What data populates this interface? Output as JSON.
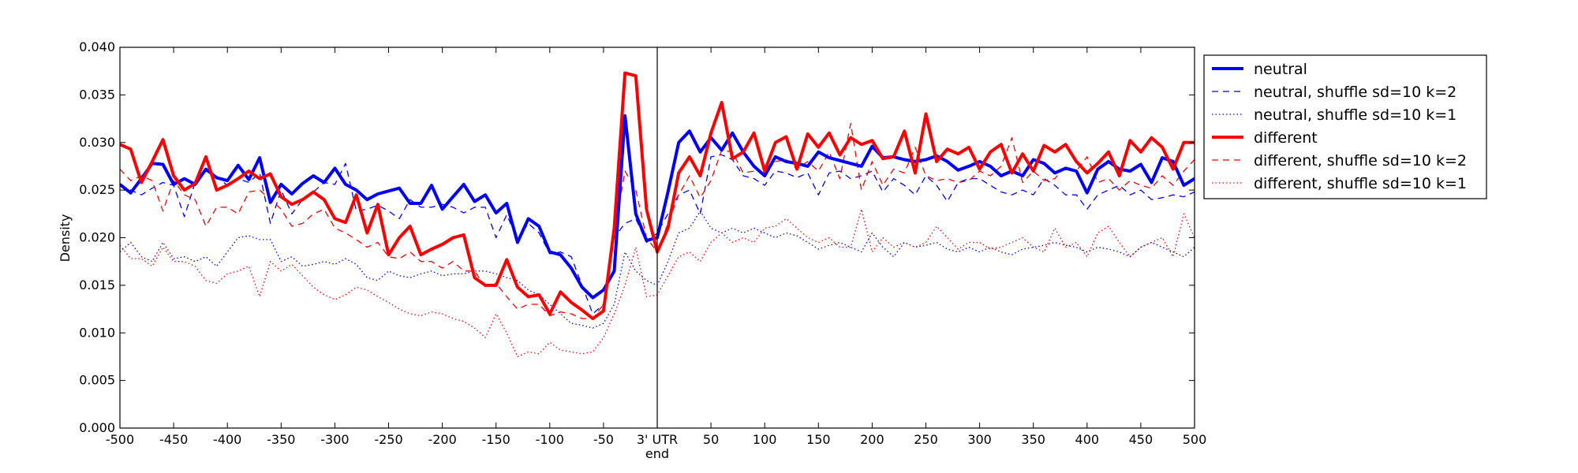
{
  "chart_data": {
    "type": "line",
    "title": "",
    "xlabel": "",
    "ylabel": "Density",
    "xlim": [
      -500,
      500
    ],
    "ylim": [
      0,
      0.04
    ],
    "xticks": [
      -500,
      -450,
      -400,
      -350,
      -300,
      -250,
      -200,
      -150,
      -100,
      -50,
      0,
      50,
      100,
      150,
      200,
      250,
      300,
      350,
      400,
      450,
      500
    ],
    "xtick_labels": [
      "-500",
      "-450",
      "-400",
      "-350",
      "-300",
      "-250",
      "-200",
      "-150",
      "-100",
      "-50",
      "3' UTR",
      "50",
      "100",
      "150",
      "200",
      "250",
      "300",
      "350",
      "400",
      "450",
      "500"
    ],
    "xtick_sublabel": "end",
    "yticks": [
      0,
      0.005,
      0.01,
      0.015,
      0.02,
      0.025,
      0.03,
      0.035,
      0.04
    ],
    "ytick_labels": [
      "0.000",
      "0.005",
      "0.010",
      "0.015",
      "0.020",
      "0.025",
      "0.030",
      "0.035",
      "0.040"
    ],
    "vline_x": 0,
    "grid": false,
    "legend_position": "outside-upper-right",
    "x": [
      -500,
      -490,
      -480,
      -470,
      -460,
      -450,
      -440,
      -430,
      -420,
      -410,
      -400,
      -390,
      -380,
      -370,
      -360,
      -350,
      -340,
      -330,
      -320,
      -310,
      -300,
      -290,
      -280,
      -270,
      -260,
      -250,
      -240,
      -230,
      -220,
      -210,
      -200,
      -190,
      -180,
      -170,
      -160,
      -150,
      -140,
      -130,
      -120,
      -110,
      -100,
      -90,
      -80,
      -70,
      -60,
      -50,
      -40,
      -30,
      -20,
      -10,
      0,
      10,
      20,
      30,
      40,
      50,
      60,
      70,
      80,
      90,
      100,
      110,
      120,
      130,
      140,
      150,
      160,
      170,
      180,
      190,
      200,
      210,
      220,
      230,
      240,
      250,
      260,
      270,
      280,
      290,
      300,
      310,
      320,
      330,
      340,
      350,
      360,
      370,
      380,
      390,
      400,
      410,
      420,
      430,
      440,
      450,
      460,
      470,
      480,
      490,
      500
    ],
    "series": [
      {
        "name": "neutral",
        "color": "#0000ff",
        "style": "solid-thick",
        "values": [
          0.0256,
          0.0247,
          0.0262,
          0.0278,
          0.0277,
          0.0256,
          0.0262,
          0.0256,
          0.0272,
          0.0263,
          0.026,
          0.0276,
          0.0261,
          0.0284,
          0.0237,
          0.0256,
          0.0246,
          0.0257,
          0.0265,
          0.0258,
          0.0273,
          0.0256,
          0.025,
          0.024,
          0.0246,
          0.0249,
          0.0252,
          0.0236,
          0.0236,
          0.0255,
          0.023,
          0.0243,
          0.0256,
          0.0238,
          0.0245,
          0.0226,
          0.0236,
          0.0195,
          0.022,
          0.0212,
          0.0185,
          0.0182,
          0.0168,
          0.0148,
          0.0137,
          0.0145,
          0.0165,
          0.0328,
          0.0225,
          0.0197,
          0.02,
          0.0248,
          0.03,
          0.0312,
          0.029,
          0.0305,
          0.0292,
          0.031,
          0.029,
          0.0275,
          0.0265,
          0.0285,
          0.028,
          0.0278,
          0.0275,
          0.029,
          0.0284,
          0.0281,
          0.0278,
          0.0275,
          0.0296,
          0.0284,
          0.0285,
          0.0282,
          0.028,
          0.0282,
          0.0286,
          0.028,
          0.0271,
          0.0275,
          0.028,
          0.0275,
          0.0265,
          0.027,
          0.0265,
          0.0282,
          0.0278,
          0.0268,
          0.0273,
          0.027,
          0.0247,
          0.0272,
          0.028,
          0.0272,
          0.027,
          0.0277,
          0.0258,
          0.0284,
          0.028,
          0.0255,
          0.0262
        ]
      },
      {
        "name": "neutral, shuffle sd=10 k=2",
        "color": "#0000ff",
        "style": "dashed",
        "values": [
          0.0255,
          0.025,
          0.0245,
          0.0252,
          0.0258,
          0.0255,
          0.0222,
          0.0258,
          0.027,
          0.0264,
          0.0255,
          0.0262,
          0.0258,
          0.0268,
          0.0215,
          0.025,
          0.0225,
          0.024,
          0.0248,
          0.0258,
          0.0256,
          0.0278,
          0.0228,
          0.023,
          0.0234,
          0.0228,
          0.022,
          0.024,
          0.0232,
          0.0232,
          0.0235,
          0.0232,
          0.0226,
          0.0232,
          0.0232,
          0.02,
          0.0224,
          0.0198,
          0.0215,
          0.0205,
          0.0183,
          0.0185,
          0.018,
          0.015,
          0.012,
          0.013,
          0.02,
          0.0215,
          0.022,
          0.0195,
          0.0205,
          0.0225,
          0.0245,
          0.025,
          0.0225,
          0.0285,
          0.0287,
          0.0282,
          0.0265,
          0.0262,
          0.0255,
          0.027,
          0.0268,
          0.0263,
          0.0268,
          0.0245,
          0.0268,
          0.027,
          0.0262,
          0.0265,
          0.027,
          0.0248,
          0.0262,
          0.0255,
          0.0245,
          0.0265,
          0.0255,
          0.0238,
          0.0258,
          0.0262,
          0.0262,
          0.0255,
          0.0248,
          0.0245,
          0.025,
          0.0245,
          0.0262,
          0.0255,
          0.0245,
          0.0245,
          0.023,
          0.0245,
          0.025,
          0.0255,
          0.0245,
          0.025,
          0.024,
          0.0242,
          0.0245,
          0.0243,
          0.0248
        ]
      },
      {
        "name": "neutral, shuffle sd=10 k=1",
        "color": "#0000ff",
        "style": "dotted",
        "values": [
          0.0185,
          0.0195,
          0.018,
          0.0175,
          0.0195,
          0.0178,
          0.018,
          0.0175,
          0.018,
          0.017,
          0.0185,
          0.02,
          0.0202,
          0.0198,
          0.0198,
          0.0175,
          0.018,
          0.017,
          0.0172,
          0.0175,
          0.0172,
          0.0178,
          0.0172,
          0.0158,
          0.0155,
          0.0165,
          0.016,
          0.0158,
          0.0162,
          0.0165,
          0.016,
          0.0162,
          0.0162,
          0.0165,
          0.0165,
          0.0162,
          0.0158,
          0.0155,
          0.0145,
          0.014,
          0.013,
          0.012,
          0.011,
          0.0108,
          0.0105,
          0.011,
          0.013,
          0.0185,
          0.0165,
          0.0155,
          0.015,
          0.0175,
          0.0205,
          0.021,
          0.0228,
          0.021,
          0.0205,
          0.021,
          0.0205,
          0.021,
          0.0205,
          0.02,
          0.0205,
          0.0202,
          0.0195,
          0.0188,
          0.0192,
          0.0195,
          0.019,
          0.0185,
          0.0205,
          0.019,
          0.018,
          0.0195,
          0.019,
          0.0192,
          0.0195,
          0.0188,
          0.0185,
          0.019,
          0.0185,
          0.019,
          0.0185,
          0.0182,
          0.0188,
          0.019,
          0.0192,
          0.0195,
          0.0192,
          0.019,
          0.0185,
          0.019,
          0.0188,
          0.0185,
          0.018,
          0.019,
          0.0195,
          0.019,
          0.0185,
          0.018,
          0.019
        ]
      },
      {
        "name": "different",
        "color": "#ff0000",
        "style": "solid-thick",
        "values": [
          0.0298,
          0.0293,
          0.0258,
          0.028,
          0.0303,
          0.0265,
          0.025,
          0.0257,
          0.0285,
          0.025,
          0.0255,
          0.0262,
          0.027,
          0.0262,
          0.0267,
          0.0243,
          0.0235,
          0.024,
          0.0248,
          0.024,
          0.022,
          0.0216,
          0.0245,
          0.0205,
          0.0235,
          0.0182,
          0.02,
          0.0212,
          0.0182,
          0.0188,
          0.0193,
          0.02,
          0.0203,
          0.0158,
          0.015,
          0.015,
          0.0177,
          0.0148,
          0.0138,
          0.014,
          0.012,
          0.0143,
          0.0132,
          0.0124,
          0.0115,
          0.0123,
          0.021,
          0.0373,
          0.037,
          0.023,
          0.0185,
          0.021,
          0.0268,
          0.0285,
          0.0265,
          0.031,
          0.0342,
          0.0283,
          0.029,
          0.031,
          0.027,
          0.03,
          0.0306,
          0.0272,
          0.0309,
          0.0295,
          0.031,
          0.0287,
          0.0305,
          0.0298,
          0.0302,
          0.0283,
          0.0285,
          0.0312,
          0.0268,
          0.033,
          0.028,
          0.0293,
          0.0288,
          0.0295,
          0.0272,
          0.029,
          0.0298,
          0.0268,
          0.0288,
          0.027,
          0.0297,
          0.029,
          0.0298,
          0.028,
          0.0268,
          0.0278,
          0.029,
          0.0265,
          0.0302,
          0.029,
          0.0305,
          0.0295,
          0.0272,
          0.03,
          0.03
        ]
      },
      {
        "name": "different, shuffle sd=10 k=2",
        "color": "#ff0000",
        "style": "dashed",
        "values": [
          0.0272,
          0.026,
          0.0265,
          0.026,
          0.0228,
          0.026,
          0.0245,
          0.024,
          0.0212,
          0.0232,
          0.0232,
          0.0225,
          0.0248,
          0.025,
          0.024,
          0.023,
          0.0212,
          0.0215,
          0.0225,
          0.023,
          0.021,
          0.0205,
          0.0198,
          0.019,
          0.0195,
          0.018,
          0.0178,
          0.0185,
          0.0175,
          0.0175,
          0.0168,
          0.0175,
          0.0165,
          0.0165,
          0.0148,
          0.0152,
          0.0138,
          0.0125,
          0.013,
          0.013,
          0.0118,
          0.0122,
          0.012,
          0.0115,
          0.0115,
          0.013,
          0.0205,
          0.027,
          0.025,
          0.02,
          0.0185,
          0.0215,
          0.0245,
          0.0265,
          0.0242,
          0.026,
          0.0292,
          0.029,
          0.0268,
          0.027,
          0.0268,
          0.028,
          0.0282,
          0.0272,
          0.028,
          0.027,
          0.029,
          0.0262,
          0.032,
          0.025,
          0.028,
          0.0255,
          0.0272,
          0.0268,
          0.0295,
          0.0265,
          0.026,
          0.0262,
          0.0258,
          0.026,
          0.027,
          0.0265,
          0.0275,
          0.0305,
          0.0258,
          0.027,
          0.026,
          0.0262,
          0.0275,
          0.027,
          0.0285,
          0.0258,
          0.0262,
          0.025,
          0.026,
          0.0255,
          0.0252,
          0.0265,
          0.0255,
          0.027,
          0.0282
        ]
      },
      {
        "name": "different, shuffle sd=10 k=1",
        "color": "#ff0000",
        "style": "dotted",
        "values": [
          0.0192,
          0.0178,
          0.0178,
          0.017,
          0.019,
          0.0175,
          0.0175,
          0.017,
          0.0155,
          0.0152,
          0.0162,
          0.0165,
          0.017,
          0.0138,
          0.0175,
          0.0165,
          0.0172,
          0.016,
          0.0148,
          0.014,
          0.0135,
          0.014,
          0.0148,
          0.0145,
          0.0138,
          0.0132,
          0.0125,
          0.012,
          0.0118,
          0.0122,
          0.012,
          0.0115,
          0.0112,
          0.0105,
          0.0095,
          0.012,
          0.01,
          0.0075,
          0.008,
          0.0078,
          0.009,
          0.0082,
          0.008,
          0.0078,
          0.008,
          0.0095,
          0.012,
          0.015,
          0.019,
          0.0138,
          0.014,
          0.016,
          0.018,
          0.0185,
          0.0175,
          0.0195,
          0.0205,
          0.0195,
          0.02,
          0.0195,
          0.021,
          0.0212,
          0.022,
          0.021,
          0.02,
          0.0195,
          0.02,
          0.019,
          0.019,
          0.023,
          0.0185,
          0.02,
          0.019,
          0.0195,
          0.019,
          0.0195,
          0.0212,
          0.02,
          0.0188,
          0.0195,
          0.0195,
          0.0188,
          0.019,
          0.0195,
          0.02,
          0.019,
          0.0185,
          0.021,
          0.019,
          0.0195,
          0.018,
          0.0205,
          0.0212,
          0.0195,
          0.018,
          0.019,
          0.0195,
          0.02,
          0.018,
          0.0225,
          0.02
        ]
      }
    ]
  }
}
